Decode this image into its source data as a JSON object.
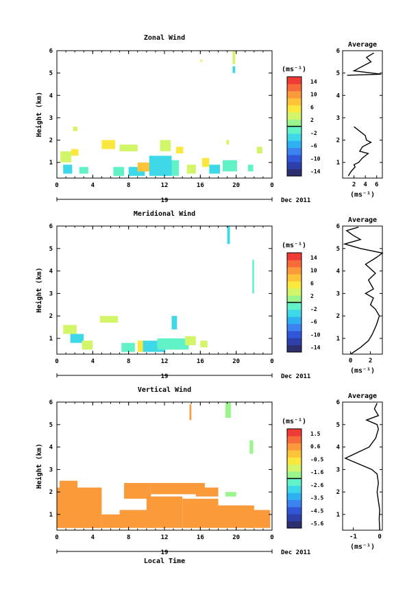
{
  "chart_data": [
    {
      "type": "heatmap",
      "title": "Zonal Wind",
      "ylabel": "Height (km)",
      "x_ticks": [
        "0",
        "4",
        "8",
        "12",
        "16",
        "20",
        "0"
      ],
      "y_ticks": [
        "1",
        "2",
        "3",
        "4",
        "5",
        "6"
      ],
      "xlim": [
        0,
        24
      ],
      "ylim": [
        0.3,
        6
      ],
      "day_label": "19",
      "date_label": "Dec 2011",
      "colorbar": {
        "unit": "(ms⁻¹)",
        "ticks": [
          "14",
          "10",
          "6",
          "2",
          "-2",
          "-6",
          "-10",
          "-14"
        ],
        "range": [
          -16,
          16
        ]
      },
      "average": {
        "title": "Average",
        "unit": "(ms⁻¹)",
        "x_ticks": [
          "2",
          "4",
          "6"
        ],
        "xlim": [
          0,
          7
        ],
        "y_ticks": [
          "1",
          "2",
          "3",
          "4",
          "5",
          "6"
        ],
        "profile": [
          [
            1.0,
            0.4
          ],
          [
            1.5,
            0.6
          ],
          [
            2.2,
            0.8
          ],
          [
            2.0,
            0.9
          ],
          [
            2.8,
            1.0
          ],
          [
            3.5,
            1.2
          ],
          [
            4.5,
            1.4
          ],
          [
            3.0,
            1.5
          ],
          [
            3.5,
            1.7
          ],
          [
            5.0,
            1.9
          ],
          [
            4.2,
            2.0
          ],
          [
            4.0,
            2.2
          ],
          [
            3.5,
            2.3
          ],
          [
            2.5,
            2.5
          ],
          [
            2.0,
            2.6
          ]
        ],
        "profile_upper": [
          [
            0.8,
            4.9
          ],
          [
            6.8,
            4.95
          ],
          [
            2.0,
            5.1
          ],
          [
            3.5,
            5.3
          ],
          [
            5.0,
            5.5
          ],
          [
            4.2,
            5.7
          ],
          [
            5.5,
            5.9
          ]
        ]
      },
      "patches": [
        {
          "x": 0.4,
          "y": 1.0,
          "w": 1.2,
          "h": 0.5,
          "v": 4
        },
        {
          "x": 0.7,
          "y": 0.5,
          "w": 1.0,
          "h": 0.4,
          "v": -3
        },
        {
          "x": 1.6,
          "y": 1.3,
          "w": 0.8,
          "h": 0.3,
          "v": 5
        },
        {
          "x": 1.8,
          "y": 2.4,
          "w": 0.5,
          "h": 0.2,
          "v": 3
        },
        {
          "x": 2.5,
          "y": 0.5,
          "w": 1.0,
          "h": 0.3,
          "v": -2
        },
        {
          "x": 5.0,
          "y": 1.6,
          "w": 1.5,
          "h": 0.4,
          "v": 5
        },
        {
          "x": 6.3,
          "y": 0.4,
          "w": 1.2,
          "h": 0.4,
          "v": -2
        },
        {
          "x": 7.0,
          "y": 1.5,
          "w": 2.0,
          "h": 0.3,
          "v": 3
        },
        {
          "x": 8.0,
          "y": 0.4,
          "w": 1.8,
          "h": 0.4,
          "v": -3
        },
        {
          "x": 9.0,
          "y": 0.6,
          "w": 1.4,
          "h": 0.4,
          "v": 7
        },
        {
          "x": 10.3,
          "y": 0.4,
          "w": 2.5,
          "h": 0.9,
          "v": -3
        },
        {
          "x": 11.5,
          "y": 1.5,
          "w": 1.2,
          "h": 0.5,
          "v": 4
        },
        {
          "x": 12.8,
          "y": 0.4,
          "w": 0.8,
          "h": 0.7,
          "v": -2
        },
        {
          "x": 13.3,
          "y": 1.4,
          "w": 0.8,
          "h": 0.3,
          "v": 5
        },
        {
          "x": 14.5,
          "y": 0.5,
          "w": 1.0,
          "h": 0.4,
          "v": 3
        },
        {
          "x": 16.2,
          "y": 0.8,
          "w": 0.8,
          "h": 0.4,
          "v": 5
        },
        {
          "x": 17.0,
          "y": 0.5,
          "w": 1.2,
          "h": 0.4,
          "v": -3
        },
        {
          "x": 18.5,
          "y": 0.6,
          "w": 1.6,
          "h": 0.5,
          "v": -2
        },
        {
          "x": 18.9,
          "y": 1.8,
          "w": 0.3,
          "h": 0.2,
          "v": 3
        },
        {
          "x": 19.6,
          "y": 5.0,
          "w": 0.3,
          "h": 0.3,
          "v": -3
        },
        {
          "x": 19.6,
          "y": 5.4,
          "w": 0.3,
          "h": 0.6,
          "v": 3
        },
        {
          "x": 21.3,
          "y": 0.6,
          "w": 0.6,
          "h": 0.3,
          "v": -2
        },
        {
          "x": 22.3,
          "y": 1.4,
          "w": 0.6,
          "h": 0.3,
          "v": 3
        },
        {
          "x": 16.0,
          "y": 5.5,
          "w": 0.2,
          "h": 0.1,
          "v": 6
        }
      ]
    },
    {
      "type": "heatmap",
      "title": "Meridional Wind",
      "ylabel": "Height (km)",
      "x_ticks": [
        "0",
        "4",
        "8",
        "12",
        "16",
        "20",
        "0"
      ],
      "y_ticks": [
        "1",
        "2",
        "3",
        "4",
        "5",
        "6"
      ],
      "xlim": [
        0,
        24
      ],
      "ylim": [
        0.3,
        6
      ],
      "day_label": "19",
      "date_label": "Dec 2011",
      "colorbar": {
        "unit": "(ms⁻¹)",
        "ticks": [
          "14",
          "10",
          "6",
          "2",
          "-2",
          "-6",
          "-10",
          "-14"
        ],
        "range": [
          -16,
          16
        ]
      },
      "average": {
        "title": "Average",
        "unit": "(ms⁻¹)",
        "x_ticks": [
          "0",
          "2"
        ],
        "xlim": [
          -0.8,
          3.2
        ],
        "y_ticks": [
          "1",
          "2",
          "3",
          "4",
          "5",
          "6"
        ],
        "profile": [
          [
            0,
            0.3
          ],
          [
            1.0,
            0.6
          ],
          [
            1.8,
            0.9
          ],
          [
            2.2,
            1.2
          ],
          [
            2.6,
            1.6
          ],
          [
            2.9,
            2.0
          ],
          [
            2.5,
            2.3
          ],
          [
            2.0,
            2.5
          ],
          [
            2.3,
            2.8
          ],
          [
            1.5,
            3.0
          ],
          [
            2.3,
            3.2
          ],
          [
            1.8,
            3.6
          ],
          [
            2.5,
            3.9
          ],
          [
            1.5,
            4.3
          ],
          [
            2.6,
            4.6
          ],
          [
            3.2,
            4.8
          ],
          [
            1.0,
            5.0
          ],
          [
            -0.6,
            5.2
          ],
          [
            1.0,
            5.4
          ],
          [
            0.2,
            5.6
          ],
          [
            -0.4,
            5.8
          ],
          [
            0.8,
            5.95
          ]
        ]
      },
      "patches": [
        {
          "x": 0.7,
          "y": 1.2,
          "w": 1.5,
          "h": 0.4,
          "v": 4
        },
        {
          "x": 1.5,
          "y": 0.8,
          "w": 1.5,
          "h": 0.4,
          "v": -3
        },
        {
          "x": 2.8,
          "y": 0.5,
          "w": 1.2,
          "h": 0.4,
          "v": 3
        },
        {
          "x": 4.8,
          "y": 1.7,
          "w": 2.0,
          "h": 0.3,
          "v": 3
        },
        {
          "x": 7.2,
          "y": 0.4,
          "w": 1.5,
          "h": 0.4,
          "v": -2
        },
        {
          "x": 9.0,
          "y": 0.4,
          "w": 1.0,
          "h": 0.5,
          "v": 6
        },
        {
          "x": 9.6,
          "y": 0.4,
          "w": 2.5,
          "h": 0.5,
          "v": -3
        },
        {
          "x": 11.2,
          "y": 0.5,
          "w": 3.5,
          "h": 0.5,
          "v": -2
        },
        {
          "x": 12.8,
          "y": 1.4,
          "w": 0.6,
          "h": 0.6,
          "v": -3
        },
        {
          "x": 14.3,
          "y": 0.7,
          "w": 1.2,
          "h": 0.4,
          "v": 3
        },
        {
          "x": 16.0,
          "y": 0.6,
          "w": 0.8,
          "h": 0.3,
          "v": 4
        },
        {
          "x": 19.0,
          "y": 5.2,
          "w": 0.3,
          "h": 0.8,
          "v": -3
        },
        {
          "x": 21.8,
          "y": 3.0,
          "w": 0.2,
          "h": 1.5,
          "v": -2
        }
      ]
    },
    {
      "type": "heatmap",
      "title": "Vertical Wind",
      "ylabel": "Height (km)",
      "xlabel": "Local Time",
      "x_ticks": [
        "0",
        "4",
        "8",
        "12",
        "16",
        "20",
        "0"
      ],
      "y_ticks": [
        "1",
        "2",
        "3",
        "4",
        "5",
        "6"
      ],
      "xlim": [
        0,
        24
      ],
      "ylim": [
        0.3,
        6
      ],
      "day_label": "19",
      "date_label": "Dec 2011",
      "colorbar": {
        "unit": "(ms⁻¹)",
        "ticks": [
          "1.5",
          "0.6",
          "-0.5",
          "-1.6",
          "-2.6",
          "-3.5",
          "-4.5",
          "-5.6"
        ],
        "range": [
          -6.1,
          2.0
        ]
      },
      "average": {
        "title": "Average",
        "unit": "(ms⁻¹)",
        "x_ticks": [
          "-1",
          "0"
        ],
        "xlim": [
          -1.4,
          0.1
        ],
        "y_ticks": [
          "1",
          "2",
          "3",
          "4",
          "5",
          "6"
        ],
        "profile": [
          [
            0,
            0.3
          ],
          [
            -0.02,
            0.8
          ],
          [
            0,
            1.2
          ],
          [
            -0.05,
            1.6
          ],
          [
            -0.1,
            2.0
          ],
          [
            -0.05,
            2.4
          ],
          [
            -0.1,
            2.8
          ],
          [
            -0.3,
            3.0
          ],
          [
            -1.3,
            3.5
          ],
          [
            -0.4,
            4.0
          ],
          [
            -0.15,
            4.4
          ],
          [
            -0.05,
            4.8
          ],
          [
            -0.1,
            5.0
          ],
          [
            -0.5,
            5.2
          ],
          [
            -0.05,
            5.4
          ],
          [
            -0.2,
            5.7
          ],
          [
            -0.1,
            5.95
          ]
        ]
      },
      "patches": [
        {
          "x": 0,
          "y": 0.4,
          "w": 5.0,
          "h": 1.8,
          "v": 0.4
        },
        {
          "x": 0.3,
          "y": 2.1,
          "w": 2.0,
          "h": 0.4,
          "v": 0.4
        },
        {
          "x": 5.0,
          "y": 0.4,
          "w": 2.5,
          "h": 0.6,
          "v": 0.4
        },
        {
          "x": 7.0,
          "y": 0.4,
          "w": 4.0,
          "h": 0.8,
          "v": 0.4
        },
        {
          "x": 7.5,
          "y": 1.7,
          "w": 3.0,
          "h": 0.7,
          "v": 0.4
        },
        {
          "x": 10.0,
          "y": 0.4,
          "w": 4.0,
          "h": 1.4,
          "v": 0.4
        },
        {
          "x": 10.5,
          "y": 1.9,
          "w": 6.0,
          "h": 0.5,
          "v": 0.4
        },
        {
          "x": 14.0,
          "y": 0.4,
          "w": 4.0,
          "h": 1.3,
          "v": 0.4
        },
        {
          "x": 15.5,
          "y": 1.8,
          "w": 2.5,
          "h": 0.4,
          "v": 0.4
        },
        {
          "x": 18.0,
          "y": 0.4,
          "w": 4.0,
          "h": 1.0,
          "v": 0.4
        },
        {
          "x": 18.8,
          "y": 1.8,
          "w": 1.2,
          "h": 0.2,
          "v": -1.5
        },
        {
          "x": 21.5,
          "y": 0.4,
          "w": 2.3,
          "h": 0.8,
          "v": 0.4
        },
        {
          "x": 14.8,
          "y": 5.2,
          "w": 0.2,
          "h": 0.7,
          "v": 0.4
        },
        {
          "x": 18.8,
          "y": 5.3,
          "w": 0.6,
          "h": 0.7,
          "v": -1.5
        },
        {
          "x": 21.5,
          "y": 3.7,
          "w": 0.4,
          "h": 0.6,
          "v": -1.5
        }
      ]
    }
  ]
}
